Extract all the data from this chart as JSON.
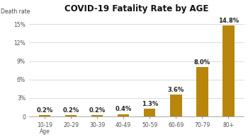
{
  "title": "COVID-19 Fatality Rate by AGE",
  "ylabel": "Death rate",
  "xlabel": "Age",
  "categories": [
    "10-19\nAge",
    "20-29",
    "30-39",
    "40-49",
    "50-59",
    "60-69",
    "70-79",
    "80+"
  ],
  "values": [
    0.2,
    0.2,
    0.2,
    0.4,
    1.3,
    3.6,
    8.0,
    14.8
  ],
  "labels": [
    "0.2%",
    "0.2%",
    "0.2%",
    "0.4%",
    "1.3%",
    "3.6%",
    "8.0%",
    "14.8%"
  ],
  "bar_color": "#B8860B",
  "background_color": "#ffffff",
  "ylim": [
    0,
    16.5
  ],
  "yticks": [
    0,
    3,
    6,
    9,
    12,
    15
  ],
  "ytick_labels": [
    "0",
    "3%",
    "6%",
    "9%",
    "12%",
    "15%"
  ],
  "title_fontsize": 8.5,
  "label_fontsize": 6,
  "axis_fontsize": 5.5,
  "bar_width": 0.45
}
